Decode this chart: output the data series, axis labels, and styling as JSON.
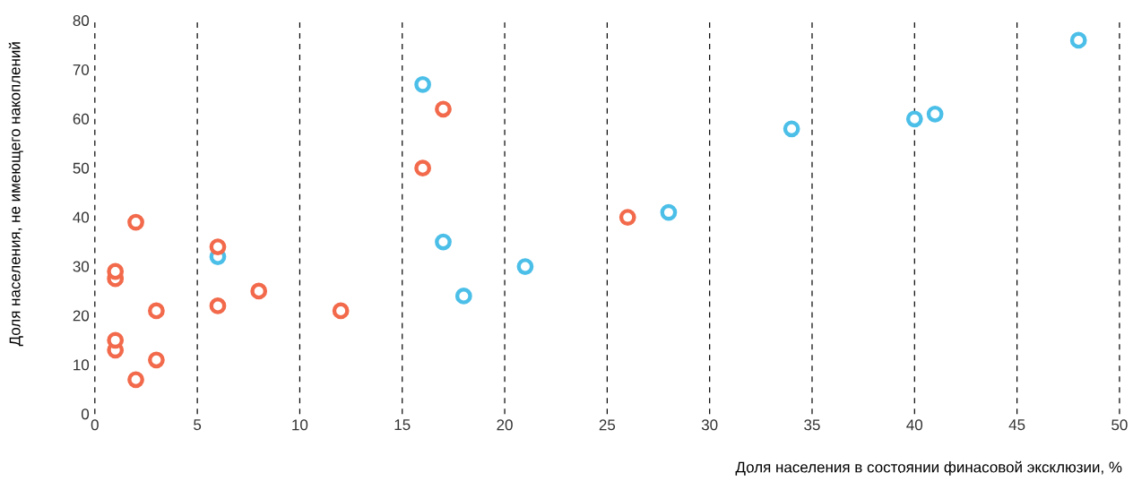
{
  "chart_data": {
    "type": "scatter",
    "xlabel": "Доля населения в состоянии финасовой эксклюзии, %",
    "ylabel": "Доля населения, не имеющего накоплений",
    "xlim": [
      0,
      50
    ],
    "ylim": [
      0,
      80
    ],
    "xticks": [
      0,
      5,
      10,
      15,
      20,
      25,
      30,
      35,
      40,
      45,
      50
    ],
    "yticks": [
      0,
      10,
      20,
      30,
      40,
      50,
      60,
      70,
      80
    ],
    "grid": "x",
    "series": [
      {
        "color": "#4cbfe8",
        "x": [
          6,
          16,
          17,
          18,
          21,
          28,
          34,
          40,
          41,
          48
        ],
        "values": [
          32,
          67,
          35,
          24,
          30,
          41,
          58,
          60,
          61,
          76
        ]
      },
      {
        "color": "#f26a4b",
        "x": [
          1,
          1,
          1,
          1,
          2,
          2,
          3,
          3,
          6,
          6,
          8,
          12,
          16,
          17,
          26
        ],
        "values": [
          13,
          15,
          27.5,
          29,
          7,
          39,
          11,
          21,
          22,
          34,
          25,
          21,
          50,
          62,
          40
        ]
      }
    ]
  }
}
